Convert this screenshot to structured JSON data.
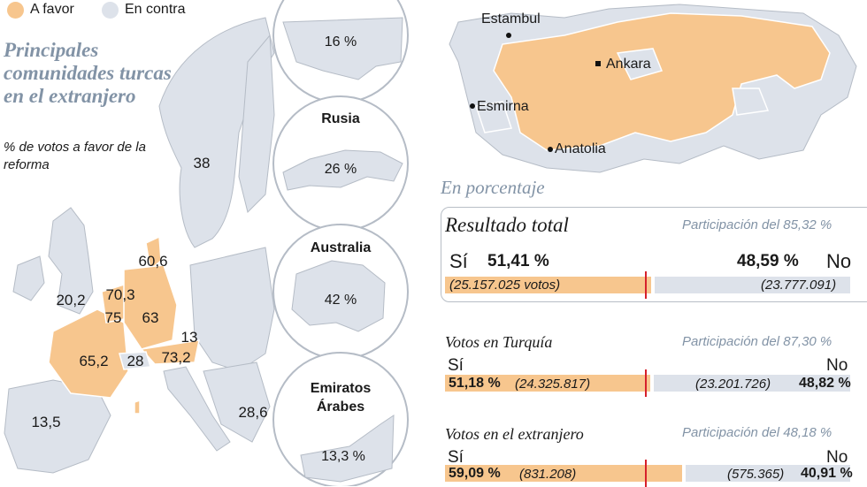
{
  "colors": {
    "favor": "#f7c68e",
    "contra": "#dde2ea",
    "outline": "#b5bcc6",
    "accent_title": "#8293a6",
    "marker": "#d6212b",
    "page": "#ffffff"
  },
  "legend": {
    "favor": "A favor",
    "contra": "En contra"
  },
  "title": "Principales comunidades turcas en el extranjero",
  "subtitle": "% de votos a favor de la reforma",
  "europe_values": [
    "38",
    "60,6",
    "20,2",
    "70,3",
    "75",
    "63",
    "13",
    "65,2",
    "28",
    "73,2",
    "13,5",
    "28,6"
  ],
  "bubbles": {
    "usa": {
      "value": "16 %"
    },
    "rusia": {
      "title": "Rusia",
      "value": "26 %"
    },
    "australia": {
      "title": "Australia",
      "value": "42 %"
    },
    "emiratos": {
      "title": "Emiratos Árabes",
      "value": "13,3 %"
    }
  },
  "turkey_cities": [
    "Estambul",
    "Ankara",
    "Esmirna",
    "Anatolia"
  ],
  "section_title": "En porcentaje",
  "results": {
    "total": {
      "title": "Resultado total",
      "participation": "Participación del 85,32 %",
      "si_label": "Sí",
      "no_label": "No",
      "si_pct": "51,41 %",
      "no_pct": "48,59 %",
      "si_votes": "(25.157.025 votos)",
      "no_votes": "(23.777.091)"
    },
    "turquia": {
      "title": "Votos en Turquía",
      "participation": "Participación del 87,30 %",
      "si_label": "Sí",
      "no_label": "No",
      "si_pct": "51,18 %",
      "no_pct": "48,82 %",
      "si_votes": "(24.325.817)",
      "no_votes": "(23.201.726)"
    },
    "extranjero": {
      "title": "Votos en el extranjero",
      "participation": "Participación del 48,18 %",
      "si_label": "Sí",
      "no_label": "No",
      "si_pct": "59,09 %",
      "no_pct": "40,91 %",
      "si_votes": "(831.208)",
      "no_votes": "(575.365)"
    }
  },
  "chart_data": {
    "type": "bar",
    "title": "En porcentaje",
    "categories": [
      "Resultado total",
      "Votos en Turquía",
      "Votos en el extranjero"
    ],
    "series": [
      {
        "name": "Sí",
        "values": [
          51.41,
          51.18,
          59.09
        ]
      },
      {
        "name": "No",
        "values": [
          48.59,
          48.82,
          40.91
        ]
      }
    ],
    "votes_si": [
      25157025,
      24325817,
      831208
    ],
    "votes_no": [
      23777091,
      23201726,
      575365
    ],
    "participation": [
      85.32,
      87.3,
      48.18
    ],
    "ylim": [
      0,
      100
    ]
  }
}
